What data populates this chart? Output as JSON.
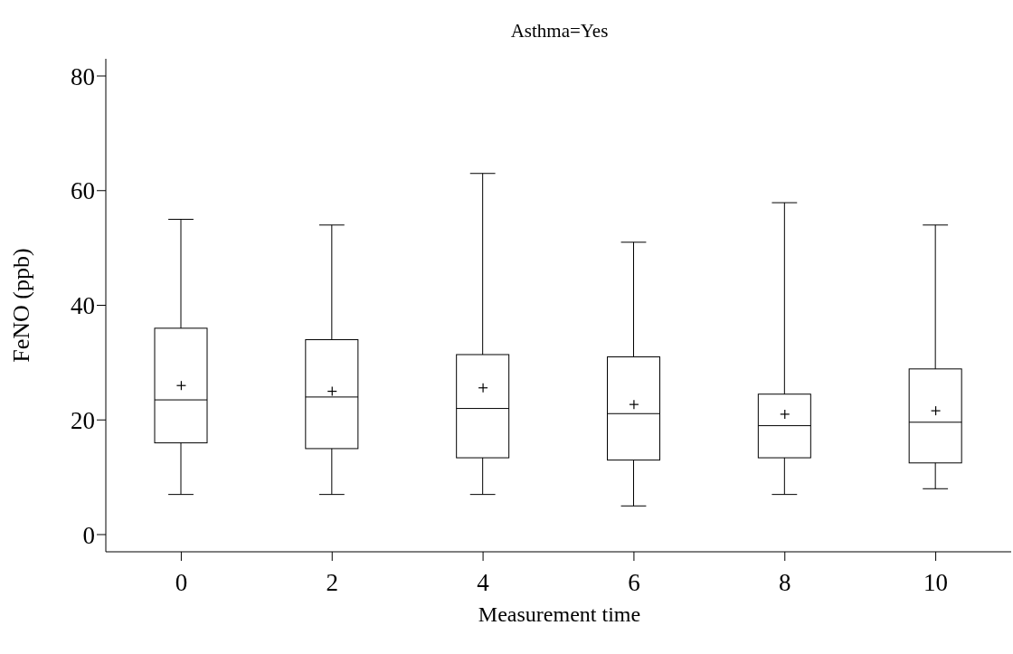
{
  "chart_data": {
    "type": "box",
    "title": "Asthma=Yes",
    "xlabel": "Measurement time",
    "ylabel": "FeNO (ppb)",
    "categories": [
      "0",
      "2",
      "4",
      "6",
      "8",
      "10"
    ],
    "color": "#000000",
    "ylim": [
      -3,
      83
    ],
    "yticks": [
      0,
      20,
      40,
      60,
      80
    ],
    "grid": false,
    "legend": false,
    "boxes": [
      {
        "low": 7,
        "q1": 16,
        "median": 23.5,
        "q3": 36,
        "high": 55,
        "mean": 26
      },
      {
        "low": 7,
        "q1": 15,
        "median": 24,
        "q3": 34,
        "high": 54,
        "mean": 25
      },
      {
        "low": 7,
        "q1": 13.4,
        "median": 22,
        "q3": 31.4,
        "high": 63,
        "mean": 25.6
      },
      {
        "low": 5,
        "q1": 13,
        "median": 21.1,
        "q3": 31,
        "high": 51,
        "mean": 22.7
      },
      {
        "low": 7,
        "q1": 13.4,
        "median": 19,
        "q3": 24.5,
        "high": 57.9,
        "mean": 21
      },
      {
        "low": 8,
        "q1": 12.5,
        "median": 19.6,
        "q3": 28.9,
        "high": 54,
        "mean": 21.6
      }
    ]
  }
}
